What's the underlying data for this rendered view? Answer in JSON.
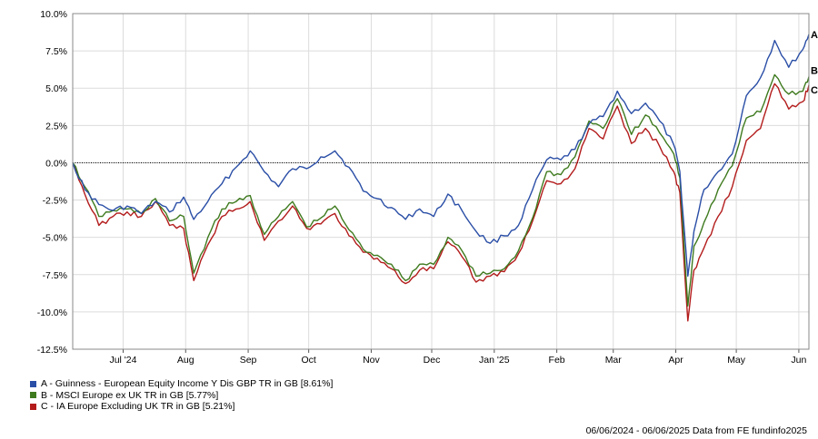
{
  "chart_data": {
    "type": "line",
    "title": "",
    "xlabel": "",
    "ylabel": "",
    "ylim": [
      -12.5,
      10.0
    ],
    "y_ticks": [
      "10.0%",
      "7.5%",
      "5.0%",
      "2.5%",
      "0.0%",
      "-2.5%",
      "-5.0%",
      "-7.5%",
      "-10.0%",
      "-12.5%"
    ],
    "y_tick_values": [
      10.0,
      7.5,
      5.0,
      2.5,
      0.0,
      -2.5,
      -5.0,
      -7.5,
      -10.0,
      -12.5
    ],
    "x_range": [
      "2024-06-06",
      "2025-06-06"
    ],
    "x_ticks": [
      {
        "label": "Jul '24",
        "date": "2024-07-01"
      },
      {
        "label": "Aug",
        "date": "2024-08-01"
      },
      {
        "label": "Sep",
        "date": "2024-09-01"
      },
      {
        "label": "Oct",
        "date": "2024-10-01"
      },
      {
        "label": "Nov",
        "date": "2024-11-01"
      },
      {
        "label": "Dec",
        "date": "2024-12-01"
      },
      {
        "label": "Jan '25",
        "date": "2025-01-01"
      },
      {
        "label": "Feb",
        "date": "2025-02-01"
      },
      {
        "label": "Mar",
        "date": "2025-03-01"
      },
      {
        "label": "Apr",
        "date": "2025-04-01"
      },
      {
        "label": "May",
        "date": "2025-05-01"
      },
      {
        "label": "Jun",
        "date": "2025-06-01"
      }
    ],
    "grid": true,
    "zero_line": "dotted",
    "legend_placement": "bottom-left",
    "series": [
      {
        "name": "A - Guinness - European Equity Income Y Dis GBP TR in GB [8.61%]",
        "end_label": "A",
        "color": "#2a4ea6",
        "points": [
          [
            "2024-06-06",
            0.0
          ],
          [
            "2024-06-12",
            -1.8
          ],
          [
            "2024-06-19",
            -2.8
          ],
          [
            "2024-06-26",
            -3.2
          ],
          [
            "2024-07-03",
            -2.9
          ],
          [
            "2024-07-10",
            -3.4
          ],
          [
            "2024-07-17",
            -2.6
          ],
          [
            "2024-07-24",
            -3.3
          ],
          [
            "2024-07-31",
            -2.3
          ],
          [
            "2024-08-05",
            -3.8
          ],
          [
            "2024-08-12",
            -2.6
          ],
          [
            "2024-08-19",
            -1.4
          ],
          [
            "2024-08-26",
            -0.3
          ],
          [
            "2024-09-02",
            0.8
          ],
          [
            "2024-09-09",
            -0.6
          ],
          [
            "2024-09-16",
            -1.6
          ],
          [
            "2024-09-23",
            -0.4
          ],
          [
            "2024-09-30",
            -0.4
          ],
          [
            "2024-10-07",
            0.4
          ],
          [
            "2024-10-14",
            0.8
          ],
          [
            "2024-10-21",
            -0.3
          ],
          [
            "2024-10-28",
            -1.9
          ],
          [
            "2024-11-04",
            -2.4
          ],
          [
            "2024-11-11",
            -3.0
          ],
          [
            "2024-11-18",
            -3.8
          ],
          [
            "2024-11-25",
            -3.1
          ],
          [
            "2024-12-02",
            -3.6
          ],
          [
            "2024-12-09",
            -2.1
          ],
          [
            "2024-12-16",
            -3.2
          ],
          [
            "2024-12-23",
            -4.6
          ],
          [
            "2024-12-30",
            -5.4
          ],
          [
            "2025-01-06",
            -4.9
          ],
          [
            "2025-01-13",
            -4.2
          ],
          [
            "2025-01-20",
            -1.8
          ],
          [
            "2025-01-27",
            0.2
          ],
          [
            "2025-02-03",
            0.2
          ],
          [
            "2025-02-10",
            0.9
          ],
          [
            "2025-02-17",
            2.6
          ],
          [
            "2025-02-24",
            3.1
          ],
          [
            "2025-03-03",
            4.8
          ],
          [
            "2025-03-10",
            3.3
          ],
          [
            "2025-03-17",
            4.0
          ],
          [
            "2025-03-24",
            2.8
          ],
          [
            "2025-03-31",
            1.2
          ],
          [
            "2025-04-03",
            -0.6
          ],
          [
            "2025-04-07",
            -7.6
          ],
          [
            "2025-04-10",
            -4.6
          ],
          [
            "2025-04-15",
            -1.8
          ],
          [
            "2025-04-22",
            -0.6
          ],
          [
            "2025-04-29",
            0.6
          ],
          [
            "2025-05-06",
            4.5
          ],
          [
            "2025-05-13",
            5.7
          ],
          [
            "2025-05-20",
            8.2
          ],
          [
            "2025-05-27",
            6.4
          ],
          [
            "2025-06-03",
            7.6
          ],
          [
            "2025-06-06",
            8.61
          ]
        ]
      },
      {
        "name": "B - MSCI Europe ex UK TR in GB [5.77%]",
        "end_label": "B",
        "color": "#3e7a1e",
        "points": [
          [
            "2024-06-06",
            0.0
          ],
          [
            "2024-06-12",
            -1.6
          ],
          [
            "2024-06-19",
            -3.6
          ],
          [
            "2024-06-26",
            -3.2
          ],
          [
            "2024-07-03",
            -3.1
          ],
          [
            "2024-07-10",
            -3.4
          ],
          [
            "2024-07-17",
            -2.4
          ],
          [
            "2024-07-24",
            -3.9
          ],
          [
            "2024-07-31",
            -3.6
          ],
          [
            "2024-08-05",
            -7.4
          ],
          [
            "2024-08-12",
            -5.0
          ],
          [
            "2024-08-19",
            -3.1
          ],
          [
            "2024-08-26",
            -2.6
          ],
          [
            "2024-09-02",
            -2.2
          ],
          [
            "2024-09-09",
            -4.8
          ],
          [
            "2024-09-16",
            -3.6
          ],
          [
            "2024-09-23",
            -2.6
          ],
          [
            "2024-09-30",
            -4.3
          ],
          [
            "2024-10-07",
            -3.7
          ],
          [
            "2024-10-14",
            -2.9
          ],
          [
            "2024-10-21",
            -4.5
          ],
          [
            "2024-10-28",
            -5.8
          ],
          [
            "2024-11-04",
            -6.2
          ],
          [
            "2024-11-11",
            -6.8
          ],
          [
            "2024-11-18",
            -7.9
          ],
          [
            "2024-11-25",
            -6.8
          ],
          [
            "2024-12-02",
            -6.8
          ],
          [
            "2024-12-09",
            -5.0
          ],
          [
            "2024-12-16",
            -5.9
          ],
          [
            "2024-12-23",
            -7.6
          ],
          [
            "2024-12-30",
            -7.4
          ],
          [
            "2025-01-06",
            -7.1
          ],
          [
            "2025-01-13",
            -5.9
          ],
          [
            "2025-01-20",
            -3.7
          ],
          [
            "2025-01-27",
            -0.6
          ],
          [
            "2025-02-03",
            -0.8
          ],
          [
            "2025-02-10",
            0.4
          ],
          [
            "2025-02-17",
            2.8
          ],
          [
            "2025-02-24",
            2.3
          ],
          [
            "2025-03-03",
            4.3
          ],
          [
            "2025-03-10",
            1.9
          ],
          [
            "2025-03-17",
            3.2
          ],
          [
            "2025-03-24",
            2.0
          ],
          [
            "2025-03-31",
            0.6
          ],
          [
            "2025-04-03",
            -1.0
          ],
          [
            "2025-04-07",
            -9.6
          ],
          [
            "2025-04-10",
            -5.6
          ],
          [
            "2025-04-15",
            -4.0
          ],
          [
            "2025-04-22",
            -1.8
          ],
          [
            "2025-04-29",
            -0.2
          ],
          [
            "2025-05-06",
            3.0
          ],
          [
            "2025-05-13",
            3.4
          ],
          [
            "2025-05-20",
            5.9
          ],
          [
            "2025-05-27",
            4.6
          ],
          [
            "2025-06-03",
            4.8
          ],
          [
            "2025-06-06",
            5.77
          ]
        ]
      },
      {
        "name": "C - IA Europe Excluding UK TR in GB [5.21%]",
        "end_label": "C",
        "color": "#b31b1b",
        "points": [
          [
            "2024-06-06",
            0.0
          ],
          [
            "2024-06-12",
            -2.1
          ],
          [
            "2024-06-19",
            -4.2
          ],
          [
            "2024-06-26",
            -3.6
          ],
          [
            "2024-07-03",
            -3.3
          ],
          [
            "2024-07-10",
            -3.6
          ],
          [
            "2024-07-17",
            -2.6
          ],
          [
            "2024-07-24",
            -4.2
          ],
          [
            "2024-07-31",
            -4.4
          ],
          [
            "2024-08-05",
            -7.9
          ],
          [
            "2024-08-12",
            -5.5
          ],
          [
            "2024-08-19",
            -3.6
          ],
          [
            "2024-08-26",
            -3.1
          ],
          [
            "2024-09-02",
            -2.6
          ],
          [
            "2024-09-09",
            -5.2
          ],
          [
            "2024-09-16",
            -3.9
          ],
          [
            "2024-09-23",
            -2.9
          ],
          [
            "2024-09-30",
            -4.4
          ],
          [
            "2024-10-07",
            -4.1
          ],
          [
            "2024-10-14",
            -3.4
          ],
          [
            "2024-10-21",
            -4.9
          ],
          [
            "2024-10-28",
            -6.0
          ],
          [
            "2024-11-04",
            -6.4
          ],
          [
            "2024-11-11",
            -7.1
          ],
          [
            "2024-11-18",
            -8.1
          ],
          [
            "2024-11-25",
            -7.2
          ],
          [
            "2024-12-02",
            -7.1
          ],
          [
            "2024-12-09",
            -5.3
          ],
          [
            "2024-12-16",
            -6.3
          ],
          [
            "2024-12-23",
            -8.0
          ],
          [
            "2024-12-30",
            -7.6
          ],
          [
            "2025-01-06",
            -7.3
          ],
          [
            "2025-01-13",
            -6.1
          ],
          [
            "2025-01-20",
            -3.9
          ],
          [
            "2025-01-27",
            -1.2
          ],
          [
            "2025-02-03",
            -1.4
          ],
          [
            "2025-02-10",
            -0.4
          ],
          [
            "2025-02-17",
            2.3
          ],
          [
            "2025-02-24",
            1.6
          ],
          [
            "2025-03-03",
            3.8
          ],
          [
            "2025-03-10",
            1.3
          ],
          [
            "2025-03-17",
            2.3
          ],
          [
            "2025-03-24",
            1.1
          ],
          [
            "2025-03-31",
            -0.6
          ],
          [
            "2025-04-03",
            -2.0
          ],
          [
            "2025-04-07",
            -10.6
          ],
          [
            "2025-04-10",
            -7.2
          ],
          [
            "2025-04-15",
            -5.7
          ],
          [
            "2025-04-22",
            -3.6
          ],
          [
            "2025-04-29",
            -1.6
          ],
          [
            "2025-05-06",
            1.5
          ],
          [
            "2025-05-13",
            2.3
          ],
          [
            "2025-05-20",
            5.3
          ],
          [
            "2025-05-27",
            3.6
          ],
          [
            "2025-06-03",
            4.1
          ],
          [
            "2025-06-06",
            5.21
          ]
        ]
      }
    ]
  },
  "footer": {
    "text": "06/06/2024 - 06/06/2025 Data from FE fundinfo2025"
  }
}
